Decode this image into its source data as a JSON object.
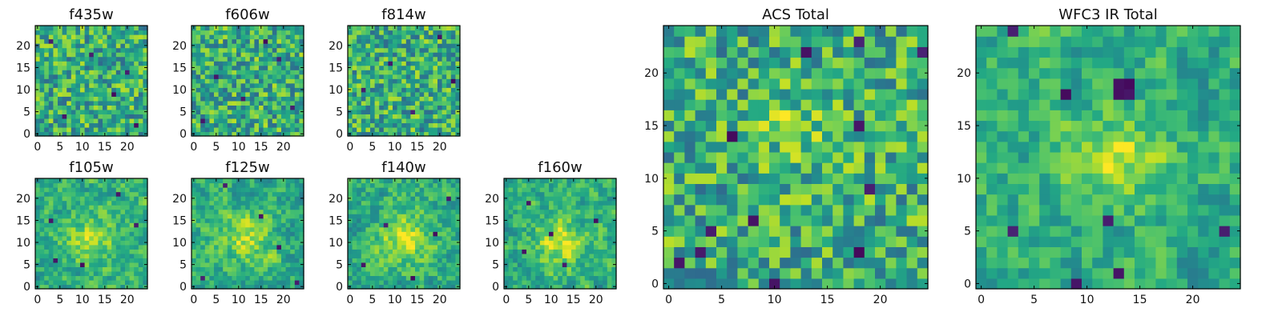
{
  "chart_data": {
    "type": "heatmap",
    "colormap": "viridis",
    "grid_size": 25,
    "panels": [
      {
        "id": "f435w",
        "title": "f435w",
        "xticks": [
          "0",
          "5",
          "10",
          "15",
          "20"
        ],
        "yticks": [
          "0",
          "5",
          "10",
          "15",
          "20"
        ],
        "xlim": [
          -0.5,
          24.5
        ],
        "ylim": [
          -0.5,
          24.5
        ],
        "noise_seed": 11,
        "smoothness": 0,
        "blob": null,
        "dark_pixels": [
          [
            3,
            21
          ],
          [
            12,
            18
          ],
          [
            17,
            9
          ],
          [
            20,
            14
          ],
          [
            6,
            4
          ],
          [
            22,
            2
          ]
        ]
      },
      {
        "id": "f606w",
        "title": "f606w",
        "xticks": [
          "0",
          "5",
          "10",
          "15",
          "20"
        ],
        "yticks": [
          "0",
          "5",
          "10",
          "15",
          "20"
        ],
        "xlim": [
          -0.5,
          24.5
        ],
        "ylim": [
          -0.5,
          24.5
        ],
        "noise_seed": 23,
        "smoothness": 0,
        "blob": null,
        "dark_pixels": [
          [
            16,
            21
          ],
          [
            5,
            13
          ],
          [
            22,
            6
          ],
          [
            2,
            3
          ],
          [
            11,
            8
          ],
          [
            19,
            17
          ]
        ]
      },
      {
        "id": "f814w",
        "title": "f814w",
        "xticks": [
          "0",
          "5",
          "10",
          "15",
          "20"
        ],
        "yticks": [
          "0",
          "5",
          "10",
          "15",
          "20"
        ],
        "xlim": [
          -0.5,
          24.5
        ],
        "ylim": [
          -0.5,
          24.5
        ],
        "noise_seed": 37,
        "smoothness": 0,
        "blob": null,
        "dark_pixels": [
          [
            20,
            22
          ],
          [
            9,
            16
          ],
          [
            14,
            5
          ],
          [
            3,
            10
          ],
          [
            23,
            12
          ]
        ]
      },
      {
        "id": "f105w",
        "title": "f105w",
        "xticks": [
          "0",
          "5",
          "10",
          "15",
          "20"
        ],
        "yticks": [
          "0",
          "5",
          "10",
          "15",
          "20"
        ],
        "xlim": [
          -0.5,
          24.5
        ],
        "ylim": [
          -0.5,
          24.5
        ],
        "noise_seed": 41,
        "smoothness": 1,
        "blob": [
          12,
          11,
          4,
          0.25
        ],
        "dark_pixels": [
          [
            4,
            6
          ],
          [
            10,
            5
          ],
          [
            18,
            21
          ],
          [
            22,
            14
          ],
          [
            3,
            15
          ]
        ]
      },
      {
        "id": "f125w",
        "title": "f125w",
        "xticks": [
          "0",
          "5",
          "10",
          "15",
          "20"
        ],
        "yticks": [
          "0",
          "5",
          "10",
          "15",
          "20"
        ],
        "xlim": [
          -0.5,
          24.5
        ],
        "ylim": [
          -0.5,
          24.5
        ],
        "noise_seed": 53,
        "smoothness": 1,
        "blob": [
          12,
          11,
          4,
          0.25
        ],
        "dark_pixels": [
          [
            7,
            23
          ],
          [
            2,
            2
          ],
          [
            19,
            9
          ],
          [
            15,
            16
          ],
          [
            23,
            1
          ]
        ]
      },
      {
        "id": "f140w",
        "title": "f140w",
        "xticks": [
          "0",
          "5",
          "10",
          "15",
          "20"
        ],
        "yticks": [
          "0",
          "5",
          "10",
          "15",
          "20"
        ],
        "xlim": [
          -0.5,
          24.5
        ],
        "ylim": [
          -0.5,
          24.5
        ],
        "noise_seed": 67,
        "smoothness": 1,
        "blob": [
          12,
          11,
          4,
          0.3
        ],
        "dark_pixels": [
          [
            19,
            12
          ],
          [
            8,
            14
          ],
          [
            3,
            5
          ],
          [
            22,
            20
          ],
          [
            14,
            2
          ]
        ]
      },
      {
        "id": "f160w",
        "title": "f160w",
        "xticks": [
          "0",
          "5",
          "10",
          "15",
          "20"
        ],
        "yticks": [
          "0",
          "5",
          "10",
          "15",
          "20"
        ],
        "xlim": [
          -0.5,
          24.5
        ],
        "ylim": [
          -0.5,
          24.5
        ],
        "noise_seed": 79,
        "smoothness": 1,
        "blob": [
          12,
          10,
          4,
          0.3
        ],
        "dark_pixels": [
          [
            5,
            19
          ],
          [
            13,
            5
          ],
          [
            20,
            15
          ],
          [
            4,
            8
          ],
          [
            10,
            12
          ]
        ]
      },
      {
        "id": "acs-total",
        "title": "ACS Total",
        "xticks": [
          "0",
          "5",
          "10",
          "15",
          "20"
        ],
        "yticks": [
          "0",
          "5",
          "10",
          "15",
          "20"
        ],
        "xlim": [
          -0.5,
          24.5
        ],
        "ylim": [
          -0.5,
          24.5
        ],
        "noise_seed": 97,
        "smoothness": 0,
        "blob": [
          12,
          15,
          3,
          0.15
        ],
        "dark_pixels": [
          [
            18,
            23
          ],
          [
            13,
            22
          ],
          [
            24,
            22
          ],
          [
            18,
            15
          ],
          [
            6,
            14
          ],
          [
            19,
            9
          ],
          [
            8,
            6
          ],
          [
            4,
            5
          ],
          [
            3,
            3
          ],
          [
            18,
            3
          ],
          [
            10,
            0
          ],
          [
            1,
            2
          ]
        ]
      },
      {
        "id": "wfc3-ir-total",
        "title": "WFC3 IR Total",
        "xticks": [
          "0",
          "5",
          "10",
          "15",
          "20"
        ],
        "yticks": [
          "0",
          "5",
          "10",
          "15",
          "20"
        ],
        "xlim": [
          -0.5,
          24.5
        ],
        "ylim": [
          -0.5,
          24.5
        ],
        "noise_seed": 131,
        "smoothness": 1,
        "blob": [
          13,
          12,
          3,
          0.3
        ],
        "dark_pixels": [
          [
            3,
            24
          ],
          [
            13,
            19
          ],
          [
            14,
            19
          ],
          [
            13,
            18
          ],
          [
            14,
            18
          ],
          [
            8,
            18
          ],
          [
            3,
            5
          ],
          [
            12,
            6
          ],
          [
            23,
            5
          ],
          [
            13,
            1
          ],
          [
            9,
            0
          ]
        ]
      }
    ]
  }
}
